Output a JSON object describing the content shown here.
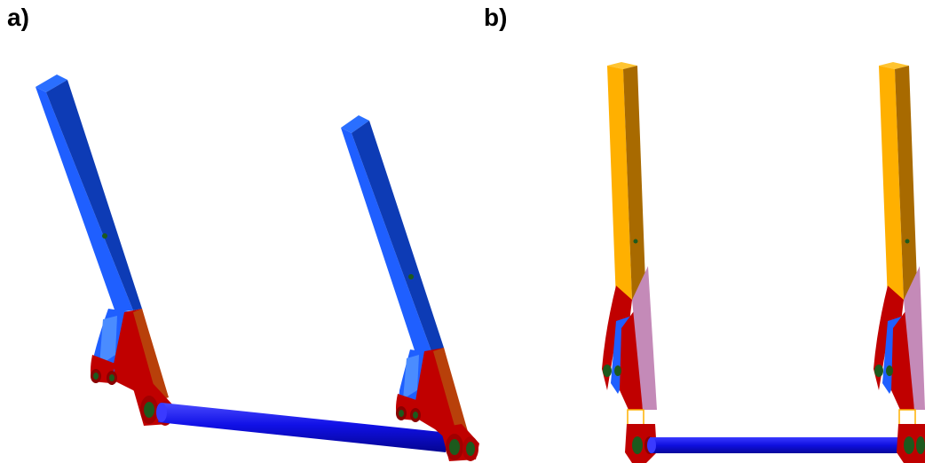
{
  "panels": [
    {
      "label": "a)"
    },
    {
      "label": "b)"
    }
  ],
  "colors": {
    "blue_light": "#1f5fff",
    "blue_dark": "#0d3bb5",
    "blue_top": "#2a6fff",
    "red": "#c00000",
    "dark_red": "#8a0000",
    "orange": "#b8400a",
    "green": "#1d5a1d",
    "yellow": "#ffb000",
    "yellow_dark": "#a86a00",
    "pink": "#c48ab8",
    "blue_tube": "#1010e6"
  }
}
